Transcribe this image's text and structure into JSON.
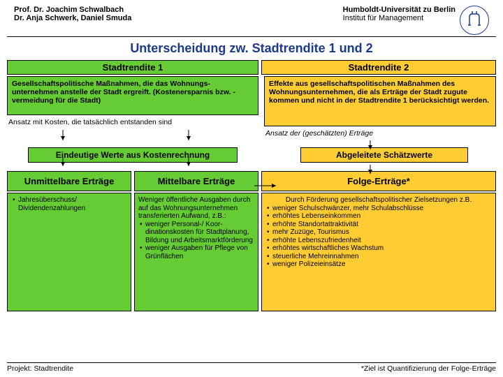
{
  "header": {
    "author1": "Prof. Dr. Joachim Schwalbach",
    "author2": "Dr. Anja Schwerk, Daniel Smuda",
    "university": "Humboldt-Universität zu Berlin",
    "institute": "Institut für Management"
  },
  "title": "Unterscheidung zw. Stadtrendite 1 und 2",
  "sr1": {
    "head": "Stadtrendite 1",
    "desc": "Gesellschaftspolitische Maßnahmen, die das Wohnungs­unternehmen anstelle der Stadt ergreift. (Kostenersparnis bzw. -vermeidung für die Stadt)",
    "sub": "Ansatz mit Kosten, die tatsächlich entstanden sind"
  },
  "sr2": {
    "head": "Stadtrendite 2",
    "desc": "Effekte aus gesellschaftspolitischen Maßnahmen des Wohnungsunternehmen, die als Erträge der Stadt zugute kommen und nicht in der Stadtrendite 1 berücksichtigt werden.",
    "sub": "Ansatz der (geschätzten) Erträge"
  },
  "mid": {
    "left": "Eindeutige Werte aus Kostenrechnung",
    "right": "Abgeleitete Schätzwerte"
  },
  "ertrag": {
    "unm": "Unmittelbare Erträge",
    "mit": "Mittelbare Erträge",
    "fol": "Folge-Erträge*"
  },
  "detail": {
    "unm": "Jahresüberschuss/ Dividendenzahlungen",
    "mit_intro": "Weniger öffentliche Ausgaben durch auf das Wohnungs­unternehmen transferierten Aufwand, z.B.:",
    "mit_items": [
      "weniger Personal-/ Koor­dinationskosten für Stadtplanung, Bildung und Arbeitsmarkt­förderung",
      "weniger Ausgaben für Pflege von Grünflächen"
    ],
    "fol_intro": "Durch Förderung gesellschaftspolitischer Zielsetzungen z.B.",
    "fol_items": [
      "weniger Schulschwänzer, mehr Schulabschlüsse",
      "erhöhtes Lebenseinkommen",
      "erhöhte Standortattraktivität",
      "mehr Zuzüge, Tourismus",
      "erhöhte Lebenszufriedenheit",
      "erhöhtes wirtschaftliches Wachstum",
      "steuerliche Mehreinnahmen",
      "weniger Polizeieinsätze"
    ]
  },
  "footer": {
    "left": "Projekt: Stadtrendite",
    "right": "*Ziel ist Quantifizierung der Folge-Erträge"
  },
  "style": {
    "green": "#66cc33",
    "orange": "#ffcc33",
    "title_color": "#1a3a8a",
    "border_color": "#000000"
  }
}
